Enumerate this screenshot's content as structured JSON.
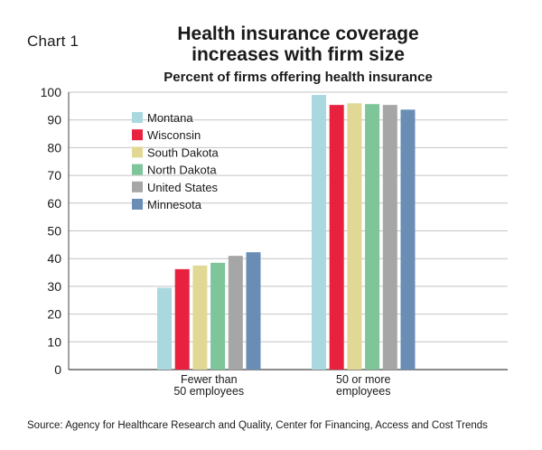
{
  "chart_label": "Chart 1",
  "title_line1": "Health insurance coverage",
  "title_line2": "increases with firm size",
  "source": "Source: Agency for Healthcare Research and Quality, Center for Financing, Access and Cost Trends",
  "chart_data": {
    "type": "bar",
    "title": "Health insurance coverage increases with firm size",
    "subtitle": "Percent of firms offering health insurance",
    "xlabel": "",
    "ylabel": "",
    "ylim": [
      0,
      100
    ],
    "yticks": [
      0,
      10,
      20,
      30,
      40,
      50,
      60,
      70,
      80,
      90,
      100
    ],
    "grid": "horizontal",
    "legend_position": "top-left",
    "categories": [
      {
        "line1": "Fewer than",
        "line2": "50 employees"
      },
      {
        "line1": "50 or more",
        "line2": "employees"
      }
    ],
    "series": [
      {
        "name": "Montana",
        "color": "#a9d9df",
        "values": [
          29.5,
          99.0
        ]
      },
      {
        "name": "Wisconsin",
        "color": "#e8213f",
        "values": [
          36.2,
          95.4
        ]
      },
      {
        "name": "South Dakota",
        "color": "#e2d896",
        "values": [
          37.5,
          96.0
        ]
      },
      {
        "name": "North Dakota",
        "color": "#7ec59a",
        "values": [
          38.5,
          95.7
        ]
      },
      {
        "name": "United States",
        "color": "#a6a6a6",
        "values": [
          41.0,
          95.4
        ]
      },
      {
        "name": "Minnesota",
        "color": "#6a8db5",
        "values": [
          42.3,
          93.7
        ]
      }
    ]
  }
}
